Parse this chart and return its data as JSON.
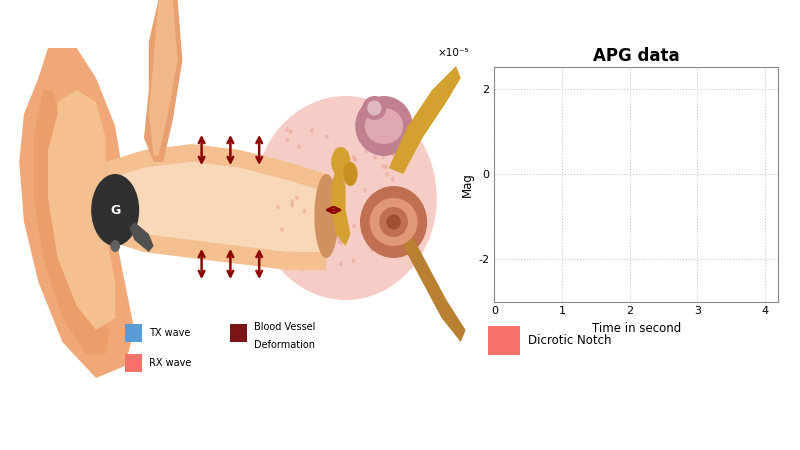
{
  "background_color": "#ffffff",
  "fig_width": 8.0,
  "fig_height": 4.5,
  "fig_dpi": 100,
  "graph_title": "APG data",
  "graph_xlabel": "Time in second",
  "graph_ylabel": "Mag",
  "graph_xlim": [
    0,
    4.2
  ],
  "graph_ylim": [
    -3e-05,
    2.5e-05
  ],
  "graph_yticks": [
    -2e-05,
    0,
    2e-05
  ],
  "graph_ytick_labels": [
    "-2",
    "0",
    "2"
  ],
  "graph_xticks": [
    0,
    1,
    2,
    3,
    4
  ],
  "graph_xtick_labels": [
    "0",
    "1",
    "2",
    "3",
    "4"
  ],
  "graph_scale_label": "×10⁻⁵",
  "grid_color": "#c8c8c8",
  "grid_linestyle": ":",
  "grid_linewidth": 0.8,
  "arrow_color": "#8b0000",
  "ear_bg": "#ffffff",
  "pinna_color": "#f0a878",
  "pinna_inner_color": "#f5c090",
  "canal_color": "#f5c090",
  "canal_inner_color": "#edb888",
  "tissue_pink": "#f5c8c0",
  "tissue_pink2": "#f0b8b0",
  "dark_brown": "#a05030",
  "medium_brown": "#c87850",
  "light_brown": "#e0a070",
  "cochlea_pink": "#e8a0a0",
  "cochlea_light": "#f0c0c0",
  "nerve_yellow": "#d4a030",
  "ossicle_yellow": "#d4a030",
  "earbud_dark": "#303030",
  "earbud_gray": "#505050",
  "tx_color": "#5b9bd5",
  "rx_color": "#f4726a",
  "bv_color": "#7b1515",
  "dicrotic_color": "#f4726a"
}
